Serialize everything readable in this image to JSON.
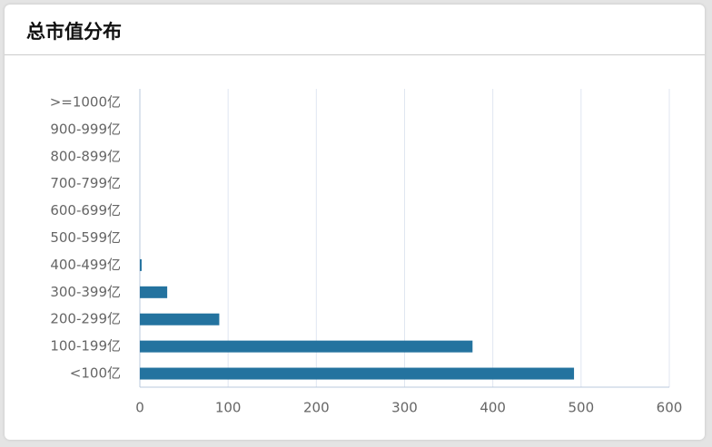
{
  "chart_data": {
    "type": "bar",
    "orientation": "horizontal",
    "title": "总市值分布",
    "categories": [
      "<100亿",
      "100-199亿",
      "200-299亿",
      "300-399亿",
      "400-499亿",
      "500-599亿",
      "600-699亿",
      "700-799亿",
      "800-899亿",
      "900-999亿",
      ">=1000亿"
    ],
    "values": [
      492,
      377,
      90,
      31,
      2,
      0,
      0,
      0,
      0,
      0,
      0
    ],
    "color": "#24739f",
    "xlim": [
      0,
      600
    ],
    "xticks": [
      0,
      100,
      200,
      300,
      400,
      500,
      600
    ],
    "grid": true
  }
}
